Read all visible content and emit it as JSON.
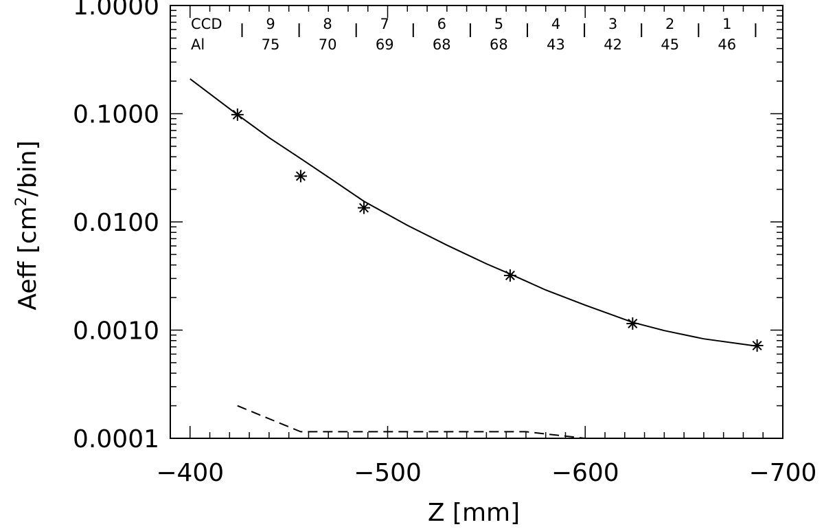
{
  "chart_data": {
    "type": "line",
    "xlabel": "Z  [mm]",
    "ylabel_main": "Aeff  [cm",
    "ylabel_sup": "2",
    "ylabel_tail": "/bin]",
    "xlim": [
      -390,
      -700
    ],
    "ylim": [
      0.0001,
      1.0
    ],
    "yscale": "log",
    "x_ticks": [
      -400,
      -500,
      -600,
      -700
    ],
    "x_tick_labels": [
      "−400",
      "−500",
      "−600",
      "−700"
    ],
    "y_ticks": [
      0.0001,
      0.001,
      0.01,
      0.1,
      1.0
    ],
    "y_tick_labels": [
      "0.0001",
      "0.0010",
      "0.0100",
      "0.1000",
      "1.0000"
    ],
    "series": [
      {
        "style": "points-star",
        "x": [
          -424,
          -456,
          -488,
          -562,
          -624,
          -687
        ],
        "y": [
          0.098,
          0.0265,
          0.0135,
          0.0032,
          0.00115,
          0.00072
        ]
      },
      {
        "style": "solid",
        "x": [
          -400,
          -424,
          -440,
          -456,
          -472,
          -488,
          -510,
          -530,
          -550,
          -562,
          -580,
          -600,
          -624,
          -640,
          -660,
          -687
        ],
        "y": [
          0.21,
          0.098,
          0.06,
          0.0385,
          0.0245,
          0.0155,
          0.0093,
          0.0061,
          0.0041,
          0.0033,
          0.00235,
          0.0017,
          0.00118,
          0.00099,
          0.00083,
          0.00071
        ]
      },
      {
        "style": "dashed",
        "x": [
          -424,
          -456,
          -488,
          -500,
          -530,
          -570,
          -600
        ],
        "y": [
          0.0002,
          0.000115,
          0.000115,
          0.000115,
          0.000115,
          0.000115,
          0.0001
        ]
      }
    ],
    "ccd_header": {
      "row1_label": "CCD",
      "row2_label": "Al",
      "columns": [
        {
          "ccd": "9",
          "al": "75"
        },
        {
          "ccd": "8",
          "al": "70"
        },
        {
          "ccd": "7",
          "al": "69"
        },
        {
          "ccd": "6",
          "al": "68"
        },
        {
          "ccd": "5",
          "al": "68"
        },
        {
          "ccd": "4",
          "al": "43"
        },
        {
          "ccd": "3",
          "al": "42"
        },
        {
          "ccd": "2",
          "al": "45"
        },
        {
          "ccd": "1",
          "al": "46"
        }
      ]
    },
    "grid": false
  }
}
